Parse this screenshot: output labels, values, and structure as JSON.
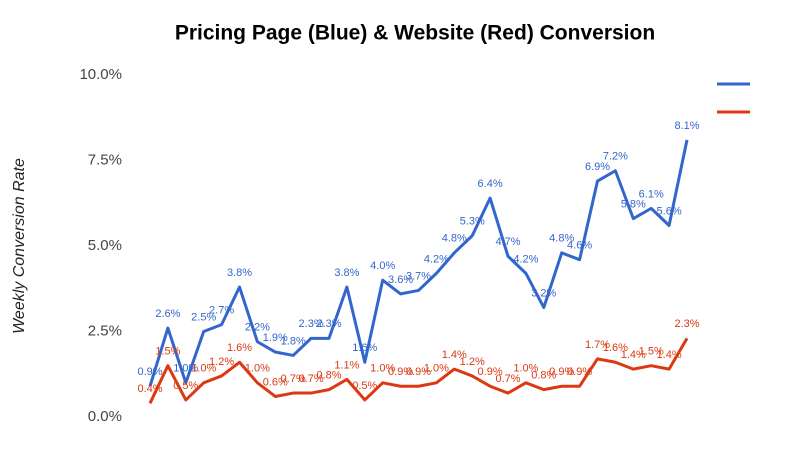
{
  "chart_data": {
    "type": "line",
    "title": "Pricing Page (Blue) & Website (Red) Conversion",
    "y_label": "Weekly Conversion Rate",
    "series": [
      {
        "color": "#3366cc",
        "values": [
          0.9,
          2.6,
          1.0,
          2.5,
          2.7,
          3.8,
          2.2,
          1.9,
          1.8,
          2.3,
          2.3,
          3.8,
          1.6,
          4.0,
          3.6,
          3.7,
          4.2,
          4.8,
          5.3,
          6.4,
          4.7,
          4.2,
          3.2,
          4.8,
          4.6,
          6.9,
          7.2,
          5.8,
          6.1,
          5.6,
          8.1
        ],
        "value_labels": [
          "0.9%",
          "2.6%",
          "1.0%",
          "2.5%",
          "2.7%",
          "3.8%",
          "2.2%",
          "1.9%",
          "1.8%",
          "2.3%",
          "2.3%",
          "3.8%",
          "1.6%",
          "4.0%",
          "3.6%",
          "3.7%",
          "4.2%",
          "4.8%",
          "5.3%",
          "6.4%",
          "4.7%",
          "4.2%",
          "3.2%",
          "4.8%",
          "4.6%",
          "6.9%",
          "7.2%",
          "5.8%",
          "6.1%",
          "5.6%",
          "8.1%"
        ]
      },
      {
        "color": "#dc3912",
        "values": [
          0.4,
          1.5,
          0.5,
          1.0,
          1.2,
          1.6,
          1.0,
          0.6,
          0.7,
          0.7,
          0.8,
          1.1,
          0.5,
          1.0,
          0.9,
          0.9,
          1.0,
          1.4,
          1.2,
          0.9,
          0.7,
          1.0,
          0.8,
          0.9,
          0.9,
          1.7,
          1.6,
          1.4,
          1.5,
          1.4,
          2.3
        ],
        "value_labels": [
          "0.4%",
          "1.5%",
          "0.5%",
          "1.0%",
          "1.2%",
          "1.6%",
          "1.0%",
          "0.6%",
          "0.7%",
          "0.7%",
          "0.8%",
          "1.1%",
          "0.5%",
          "1.0%",
          "0.9%",
          "0.9%",
          "1.0%",
          "1.4%",
          "1.2%",
          "0.9%",
          "0.7%",
          "1.0%",
          "0.8%",
          "0.9%",
          "0.9%",
          "1.7%",
          "1.6%",
          "1.4%",
          "1.5%",
          "1.4%",
          "2.3%"
        ]
      }
    ],
    "ylim": [
      0,
      10
    ],
    "yticks": [
      {
        "value": 0,
        "label": "0.0%"
      },
      {
        "value": 2.5,
        "label": "2.5%"
      },
      {
        "value": 5,
        "label": "5.0%"
      },
      {
        "value": 7.5,
        "label": "7.5%"
      },
      {
        "value": 10,
        "label": "10.0%"
      }
    ],
    "grid": true,
    "legend": "top-right"
  }
}
